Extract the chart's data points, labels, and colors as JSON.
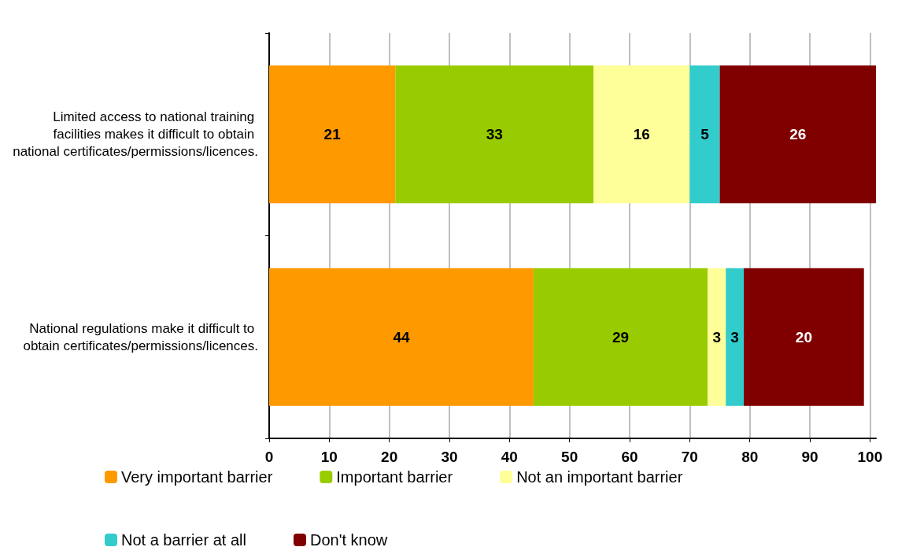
{
  "chart_data": {
    "type": "bar",
    "orientation": "horizontal",
    "stacked": true,
    "data_labels": true,
    "grid": "x",
    "legend": "bottom",
    "categories": [
      "Limited access to national training facilities makes it difficult to obtain national certificates/permissions/licences.",
      "National regulations make it difficult to obtain certificates/permissions/licences."
    ],
    "xlim": [
      0,
      101
    ],
    "xticks": [
      0,
      10,
      20,
      30,
      40,
      50,
      60,
      70,
      80,
      90,
      100
    ],
    "series": [
      {
        "name": "Very important barrier",
        "color": "#ff9900",
        "values": [
          21,
          44
        ]
      },
      {
        "name": "Important barrier",
        "color": "#99cc00",
        "values": [
          33,
          29
        ]
      },
      {
        "name": "Not an important barrier",
        "color": "#ffff99",
        "values": [
          16,
          3
        ]
      },
      {
        "name": "Not a barrier at all",
        "color": "#33cccc",
        "values": [
          5,
          3
        ]
      },
      {
        "name": "Don't know",
        "color": "#800000",
        "values": [
          26,
          20
        ]
      }
    ]
  }
}
